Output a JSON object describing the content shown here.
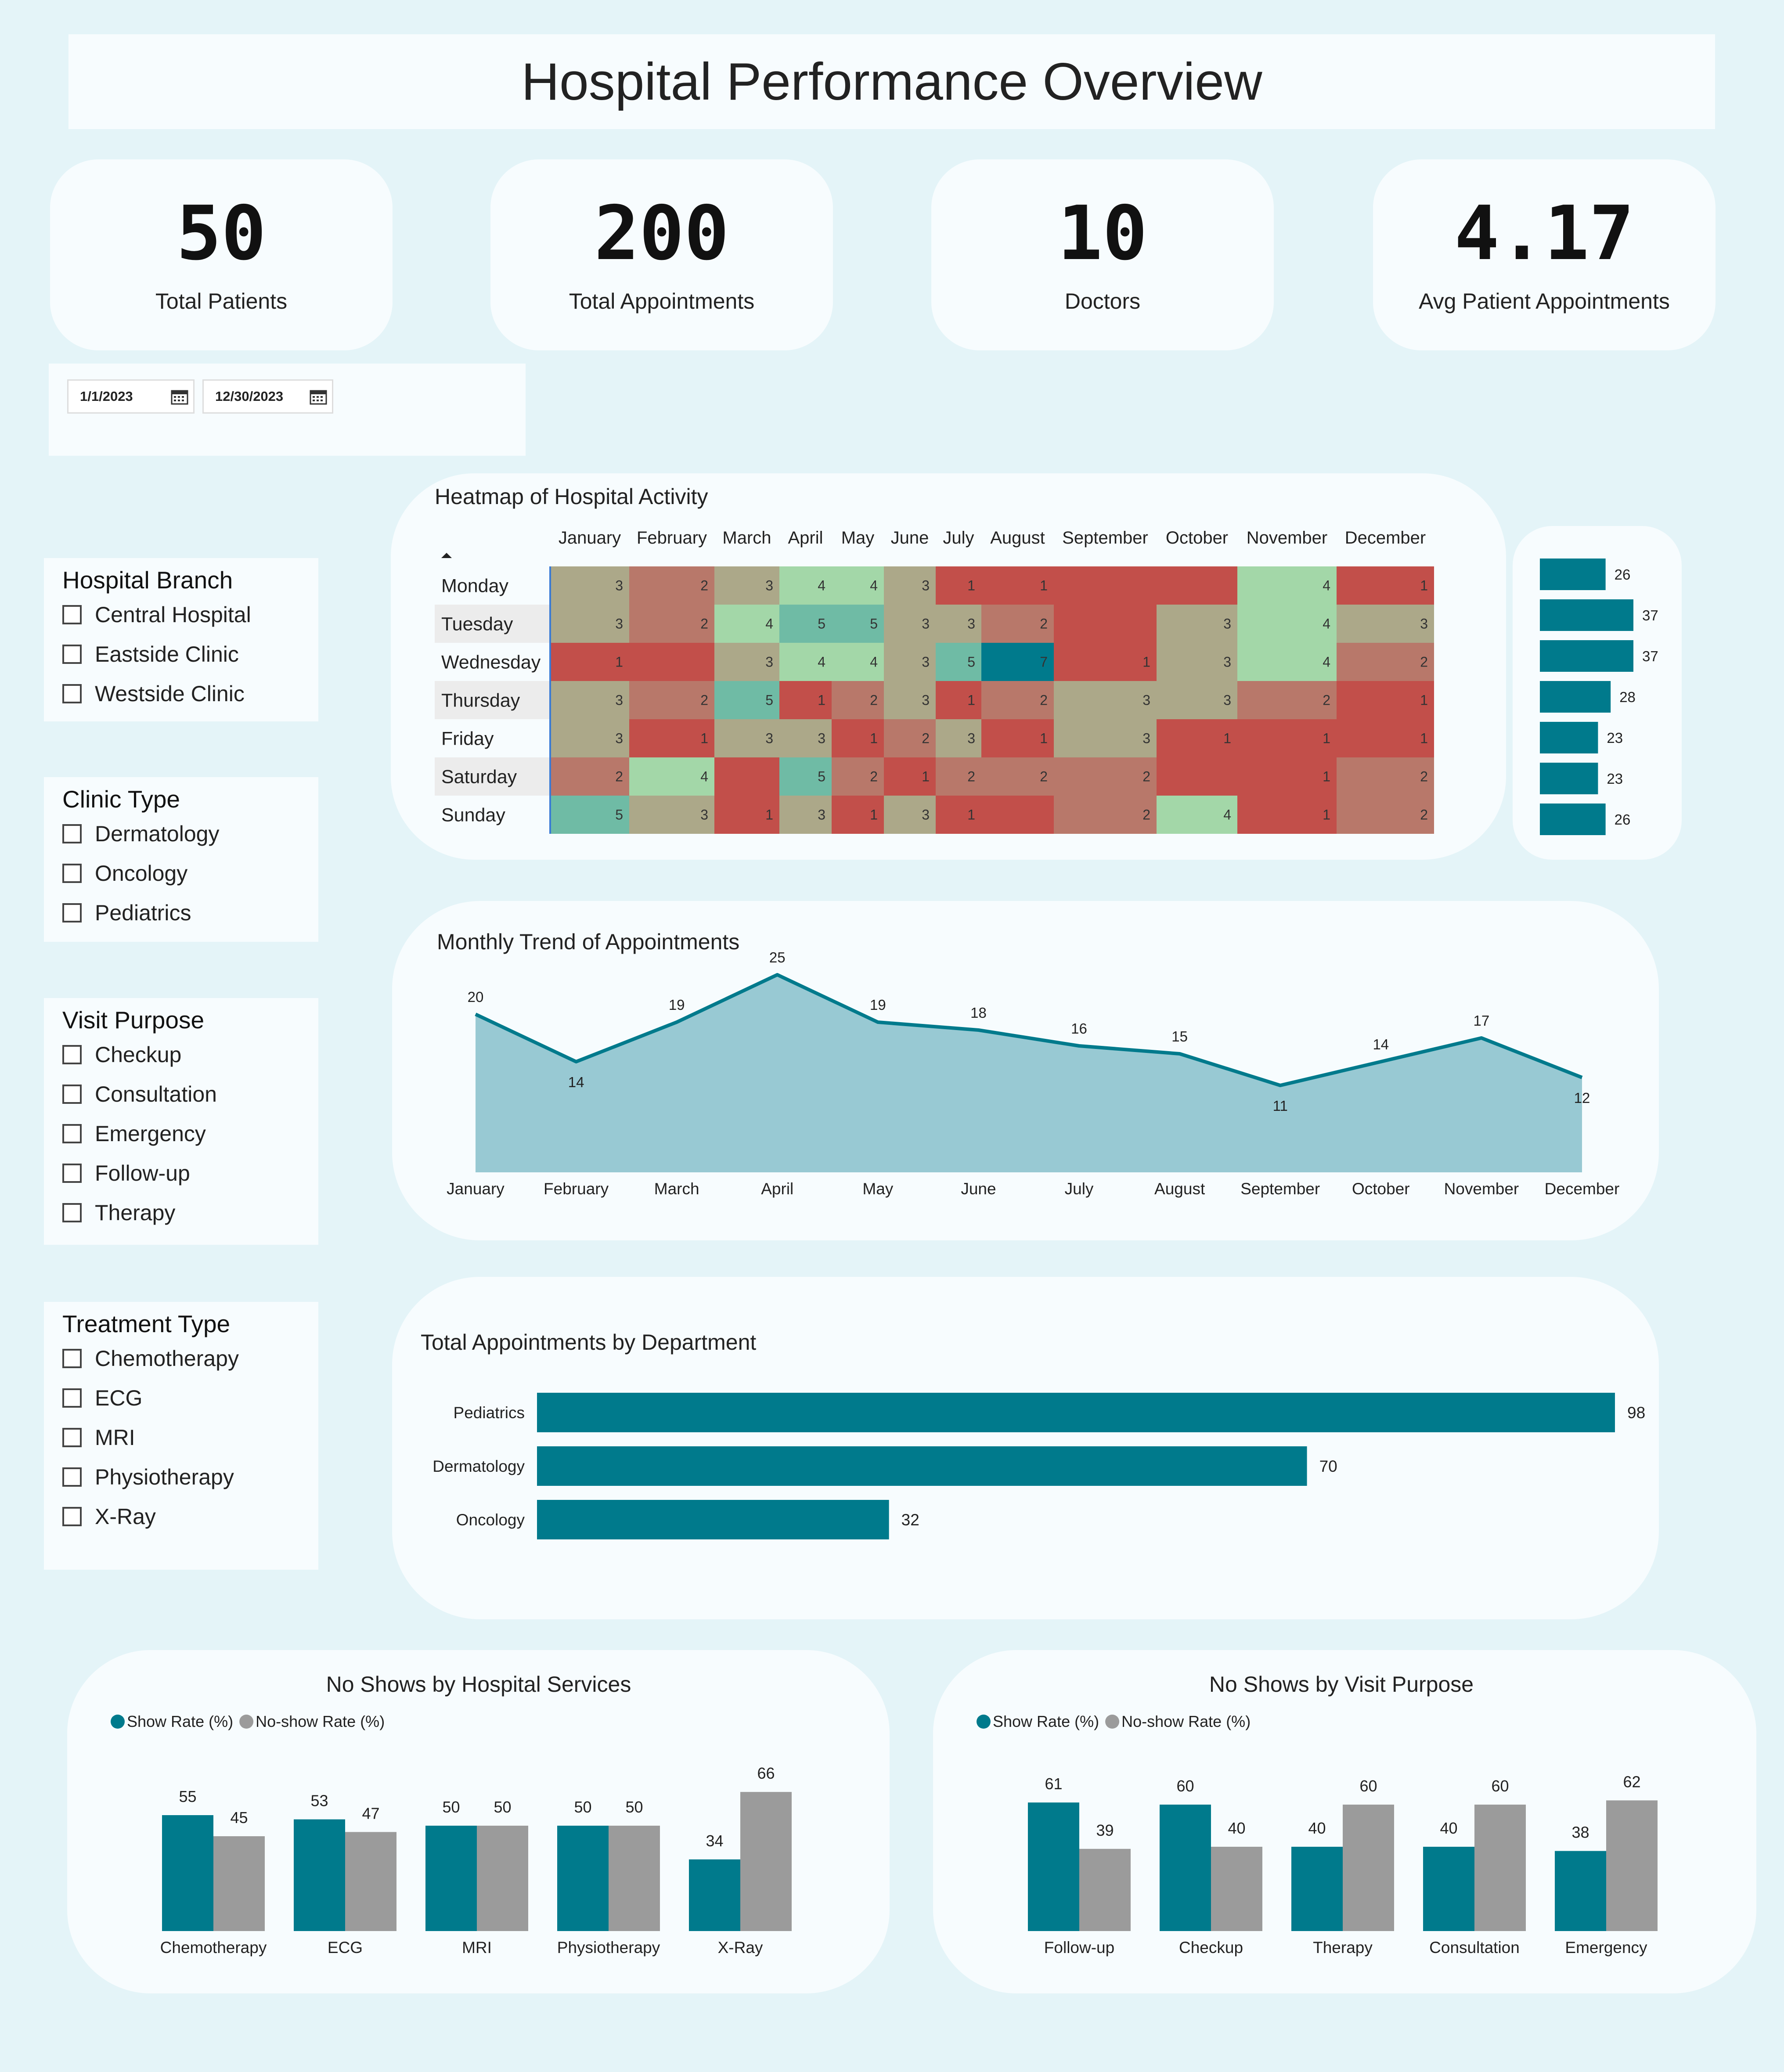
{
  "header": {
    "title": "Hospital Performance Overview"
  },
  "kpis": [
    {
      "value": "50",
      "label": "Total Patients"
    },
    {
      "value": "200",
      "label": "Total Appointments"
    },
    {
      "value": "10",
      "label": "Doctors"
    },
    {
      "value": "4.17",
      "label": "Avg  Patient Appointments"
    }
  ],
  "date_filter": {
    "start": "1/1/2023",
    "end": "12/30/2023",
    "icon": "calendar-icon"
  },
  "slicers": [
    {
      "title": "Hospital Branch",
      "options": [
        "Central Hospital",
        "Eastside Clinic",
        "Westside Clinic"
      ]
    },
    {
      "title": "Clinic Type",
      "options": [
        "Dermatology",
        "Oncology",
        "Pediatrics"
      ]
    },
    {
      "title": "Visit Purpose",
      "options": [
        "Checkup",
        "Consultation",
        "Emergency",
        "Follow-up",
        "Therapy"
      ]
    },
    {
      "title": "Treatment Type",
      "options": [
        "Chemotherapy",
        "ECG",
        "MRI",
        "Physiotherapy",
        "X-Ray"
      ]
    }
  ],
  "colors": {
    "teal": "#007a8c",
    "gray": "#9b9b9b",
    "area_fill": "#98c9d3",
    "heat_red": "#c24f4a",
    "heat_rose": "#b8786a",
    "heat_khaki": "#aca889",
    "heat_lightgreen": "#a3d7a8",
    "heat_green": "#6fbba5",
    "heat_teal": "#007a8c"
  },
  "chart_data": [
    {
      "type": "heatmap",
      "title": "Heatmap of Hospital Activity",
      "columns": [
        "January",
        "February",
        "March",
        "April",
        "May",
        "June",
        "July",
        "August",
        "September",
        "October",
        "November",
        "December"
      ],
      "rows": [
        "Monday",
        "Tuesday",
        "Wednesday",
        "Thursday",
        "Friday",
        "Saturday",
        "Sunday"
      ],
      "values": [
        [
          3,
          2,
          3,
          4,
          4,
          3,
          1,
          1,
          null,
          null,
          4,
          1
        ],
        [
          3,
          2,
          4,
          5,
          5,
          3,
          3,
          2,
          null,
          3,
          4,
          3
        ],
        [
          1,
          null,
          3,
          4,
          4,
          3,
          5,
          7,
          1,
          3,
          4,
          2
        ],
        [
          3,
          2,
          5,
          1,
          2,
          3,
          1,
          2,
          3,
          3,
          2,
          1
        ],
        [
          3,
          1,
          3,
          3,
          1,
          2,
          3,
          1,
          3,
          1,
          1,
          1
        ],
        [
          2,
          4,
          null,
          5,
          2,
          1,
          2,
          2,
          2,
          null,
          1,
          2
        ],
        [
          5,
          3,
          1,
          3,
          1,
          3,
          1,
          null,
          2,
          4,
          1,
          2
        ]
      ]
    },
    {
      "type": "bar",
      "orientation": "horizontal",
      "title": "",
      "categories": [
        "Monday",
        "Tuesday",
        "Wednesday",
        "Thursday",
        "Friday",
        "Saturday",
        "Sunday"
      ],
      "values": [
        26,
        37,
        37,
        28,
        23,
        23,
        26
      ]
    },
    {
      "type": "area",
      "title": "Monthly Trend of Appointments",
      "x": [
        "January",
        "February",
        "March",
        "April",
        "May",
        "June",
        "July",
        "August",
        "September",
        "October",
        "November",
        "December"
      ],
      "values": [
        20,
        14,
        19,
        25,
        19,
        18,
        16,
        15,
        11,
        14,
        17,
        12
      ],
      "ylim": [
        0,
        25
      ]
    },
    {
      "type": "bar",
      "orientation": "horizontal",
      "title": "Total Appointments by Department",
      "categories": [
        "Pediatrics",
        "Dermatology",
        "Oncology"
      ],
      "values": [
        98,
        70,
        32
      ]
    },
    {
      "type": "bar",
      "title": "No Shows by Hospital Services",
      "categories": [
        "Chemotherapy",
        "ECG",
        "MRI",
        "Physiotherapy",
        "X-Ray"
      ],
      "series": [
        {
          "name": "Show Rate (%)",
          "values": [
            55,
            53,
            50,
            50,
            34
          ]
        },
        {
          "name": "No-show Rate (%)",
          "values": [
            45,
            47,
            50,
            50,
            66
          ]
        }
      ],
      "legend": "top-left"
    },
    {
      "type": "bar",
      "title": "No Shows by Visit Purpose",
      "categories": [
        "Follow-up",
        "Checkup",
        "Therapy",
        "Consultation",
        "Emergency"
      ],
      "series": [
        {
          "name": "Show Rate (%)",
          "values": [
            61,
            60,
            40,
            40,
            38
          ]
        },
        {
          "name": "No-show Rate (%)",
          "values": [
            39,
            40,
            60,
            60,
            62
          ]
        }
      ],
      "legend": "top-left"
    }
  ]
}
